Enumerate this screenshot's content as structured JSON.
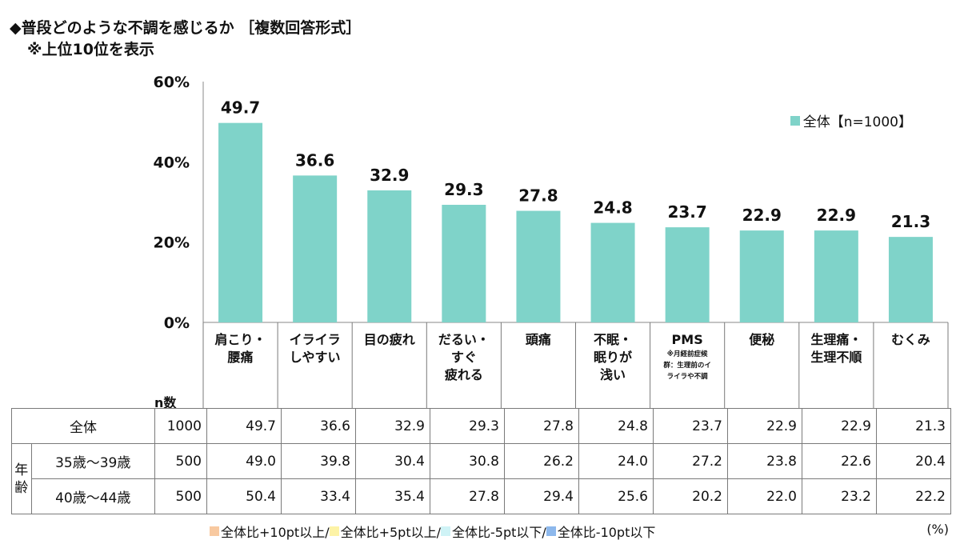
{
  "title": {
    "line1": "◆普段どのような不調を感じるか ［複数回答形式］",
    "line2": "※上位10位を表示"
  },
  "legend": {
    "label": "全体【n=1000】",
    "color": "#7fd3c9"
  },
  "n_header": "n数",
  "categories": [
    {
      "label": "肩こり・腰痛",
      "line1": "肩こり・",
      "line2": "腰痛"
    },
    {
      "label": "イライラしやすい",
      "line1": "イライラ",
      "line2": "しやすい"
    },
    {
      "label": "目の疲れ",
      "line1": "目の疲れ"
    },
    {
      "label": "だるい・すぐ疲れる",
      "line1": "だるい・",
      "line2": "すぐ",
      "line3": "疲れる"
    },
    {
      "label": "頭痛",
      "line1": "頭痛"
    },
    {
      "label": "不眠・眠りが浅い",
      "line1": "不眠・",
      "line2": "眠りが",
      "line3": "浅い"
    },
    {
      "label": "PMS",
      "line1": "PMS",
      "note1": "※月経前症候",
      "note2": "群：生理前のイ",
      "note3": "ライラや不調"
    },
    {
      "label": "便秘",
      "line1": "便秘"
    },
    {
      "label": "生理痛・生理不順",
      "line1": "生理痛・",
      "line2": "生理不順"
    },
    {
      "label": "むくみ",
      "line1": "むくみ"
    }
  ],
  "chart_data": {
    "type": "bar",
    "categories": [
      "肩こり・腰痛",
      "イライラしやすい",
      "目の疲れ",
      "だるい・すぐ疲れる",
      "頭痛",
      "不眠・眠りが浅い",
      "PMS",
      "便秘",
      "生理痛・生理不順",
      "むくみ"
    ],
    "series": [
      {
        "name": "全体【n=1000】",
        "values": [
          49.7,
          36.6,
          32.9,
          29.3,
          27.8,
          24.8,
          23.7,
          22.9,
          22.9,
          21.3
        ],
        "color": "#7fd3c9"
      }
    ],
    "value_labels": [
      "49.7",
      "36.6",
      "32.9",
      "29.3",
      "27.8",
      "24.8",
      "23.7",
      "22.9",
      "22.9",
      "21.3"
    ],
    "ylim": [
      0,
      60
    ],
    "y_ticks": [
      0,
      20,
      40,
      60
    ],
    "y_tick_labels": [
      "0%",
      "20%",
      "40%",
      "60%"
    ],
    "legend_position": "top-right",
    "grid": false
  },
  "table": {
    "group_label_1": "年",
    "group_label_2": "齢",
    "rows": [
      {
        "label": "全体",
        "n": "1000",
        "values": [
          "49.7",
          "36.6",
          "32.9",
          "29.3",
          "27.8",
          "24.8",
          "23.7",
          "22.9",
          "22.9",
          "21.3"
        ]
      },
      {
        "label": "35歳～39歳",
        "n": "500",
        "values": [
          "49.0",
          "39.8",
          "30.4",
          "30.8",
          "26.2",
          "24.0",
          "27.2",
          "23.8",
          "22.6",
          "20.4"
        ]
      },
      {
        "label": "40歳～44歳",
        "n": "500",
        "values": [
          "50.4",
          "33.4",
          "35.4",
          "27.8",
          "29.4",
          "25.6",
          "20.2",
          "22.0",
          "23.2",
          "22.2"
        ]
      }
    ]
  },
  "footnote": {
    "items": [
      {
        "label": "全体比+10pt以上/",
        "color": "#f8c9a0"
      },
      {
        "label": "全体比+5pt以上/",
        "color": "#fdf3a6"
      },
      {
        "label": "全体比-5pt以下/",
        "color": "#cff3f6"
      },
      {
        "label": "全体比-10pt以下",
        "color": "#8db8ec"
      }
    ],
    "unit": "(%)"
  }
}
